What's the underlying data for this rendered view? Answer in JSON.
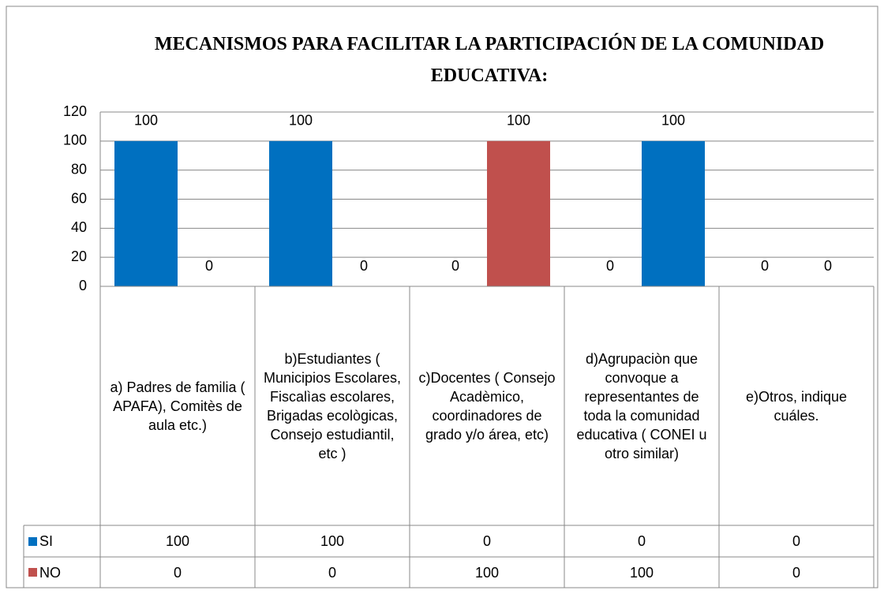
{
  "chart_data": {
    "type": "bar",
    "title": "MECANISMOS PARA FACILITAR LA PARTICIPACIÓN DE LA COMUNIDAD EDUCATIVA:",
    "categories": [
      "a) Padres de familia ( APAFA), Comitès de aula etc.)",
      "b)Estudiantes ( Municipios Escolares, Fiscalìas escolares, Brigadas ecològicas, Consejo estudiantil, etc )",
      "c)Docentes ( Consejo Acadèmico, coordinadores de grado y/o área, etc)",
      "d)Agrupaciòn que convoque a representantes de toda la comunidad educativa ( CONEI u otro similar)",
      "e)Otros, indique cuáles."
    ],
    "series": [
      {
        "name": "SI",
        "color": "#0070c0",
        "values": [
          100,
          100,
          0,
          0,
          0
        ]
      },
      {
        "name": "NO",
        "color": "#c0504d",
        "values": [
          0,
          0,
          100,
          100,
          0
        ],
        "colors": [
          "#c0504d",
          "#c0504d",
          "#c0504d",
          "#0070c0",
          "#c0504d"
        ]
      }
    ],
    "ylim": [
      0,
      120
    ],
    "yticks": [
      0,
      20,
      40,
      60,
      80,
      100,
      120
    ],
    "grid": true,
    "legend": "table"
  }
}
